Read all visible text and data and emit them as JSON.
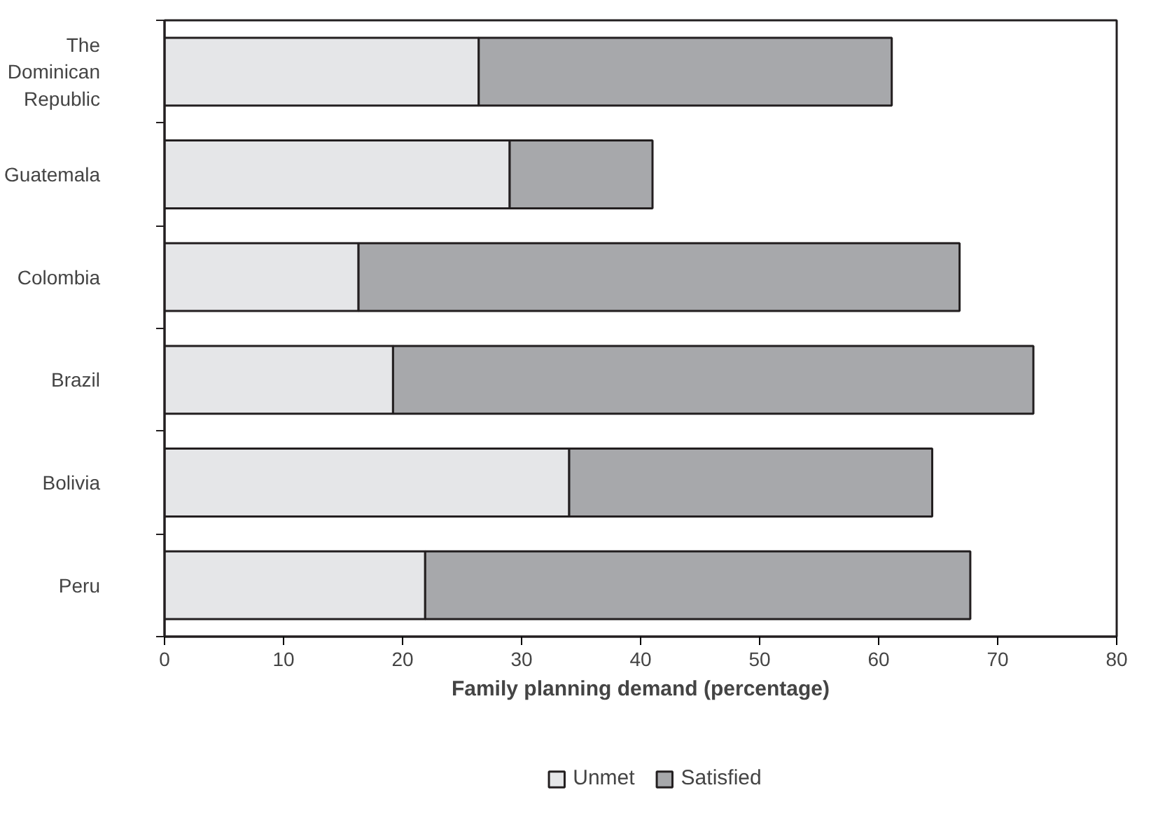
{
  "chart_data": {
    "type": "bar",
    "orientation": "horizontal",
    "stacked": true,
    "xlabel": "Family planning demand (percentage)",
    "categories": [
      "The Dominican Republic",
      "Guatemala",
      "Colombia",
      "Brazil",
      "Bolivia",
      "Peru"
    ],
    "series": [
      {
        "name": "Unmet",
        "color": "#e5e6e8",
        "values": [
          26.4,
          29.0,
          16.3,
          19.2,
          34.0,
          21.9
        ]
      },
      {
        "name": "Satisfied",
        "color": "#a7a8ab",
        "values": [
          34.7,
          12.0,
          50.5,
          53.8,
          30.5,
          45.8
        ]
      }
    ],
    "xlim": [
      0,
      80
    ],
    "xticks": [
      0,
      10,
      20,
      30,
      40,
      50,
      60,
      70,
      80
    ],
    "grid": false,
    "legend": "bottom"
  }
}
